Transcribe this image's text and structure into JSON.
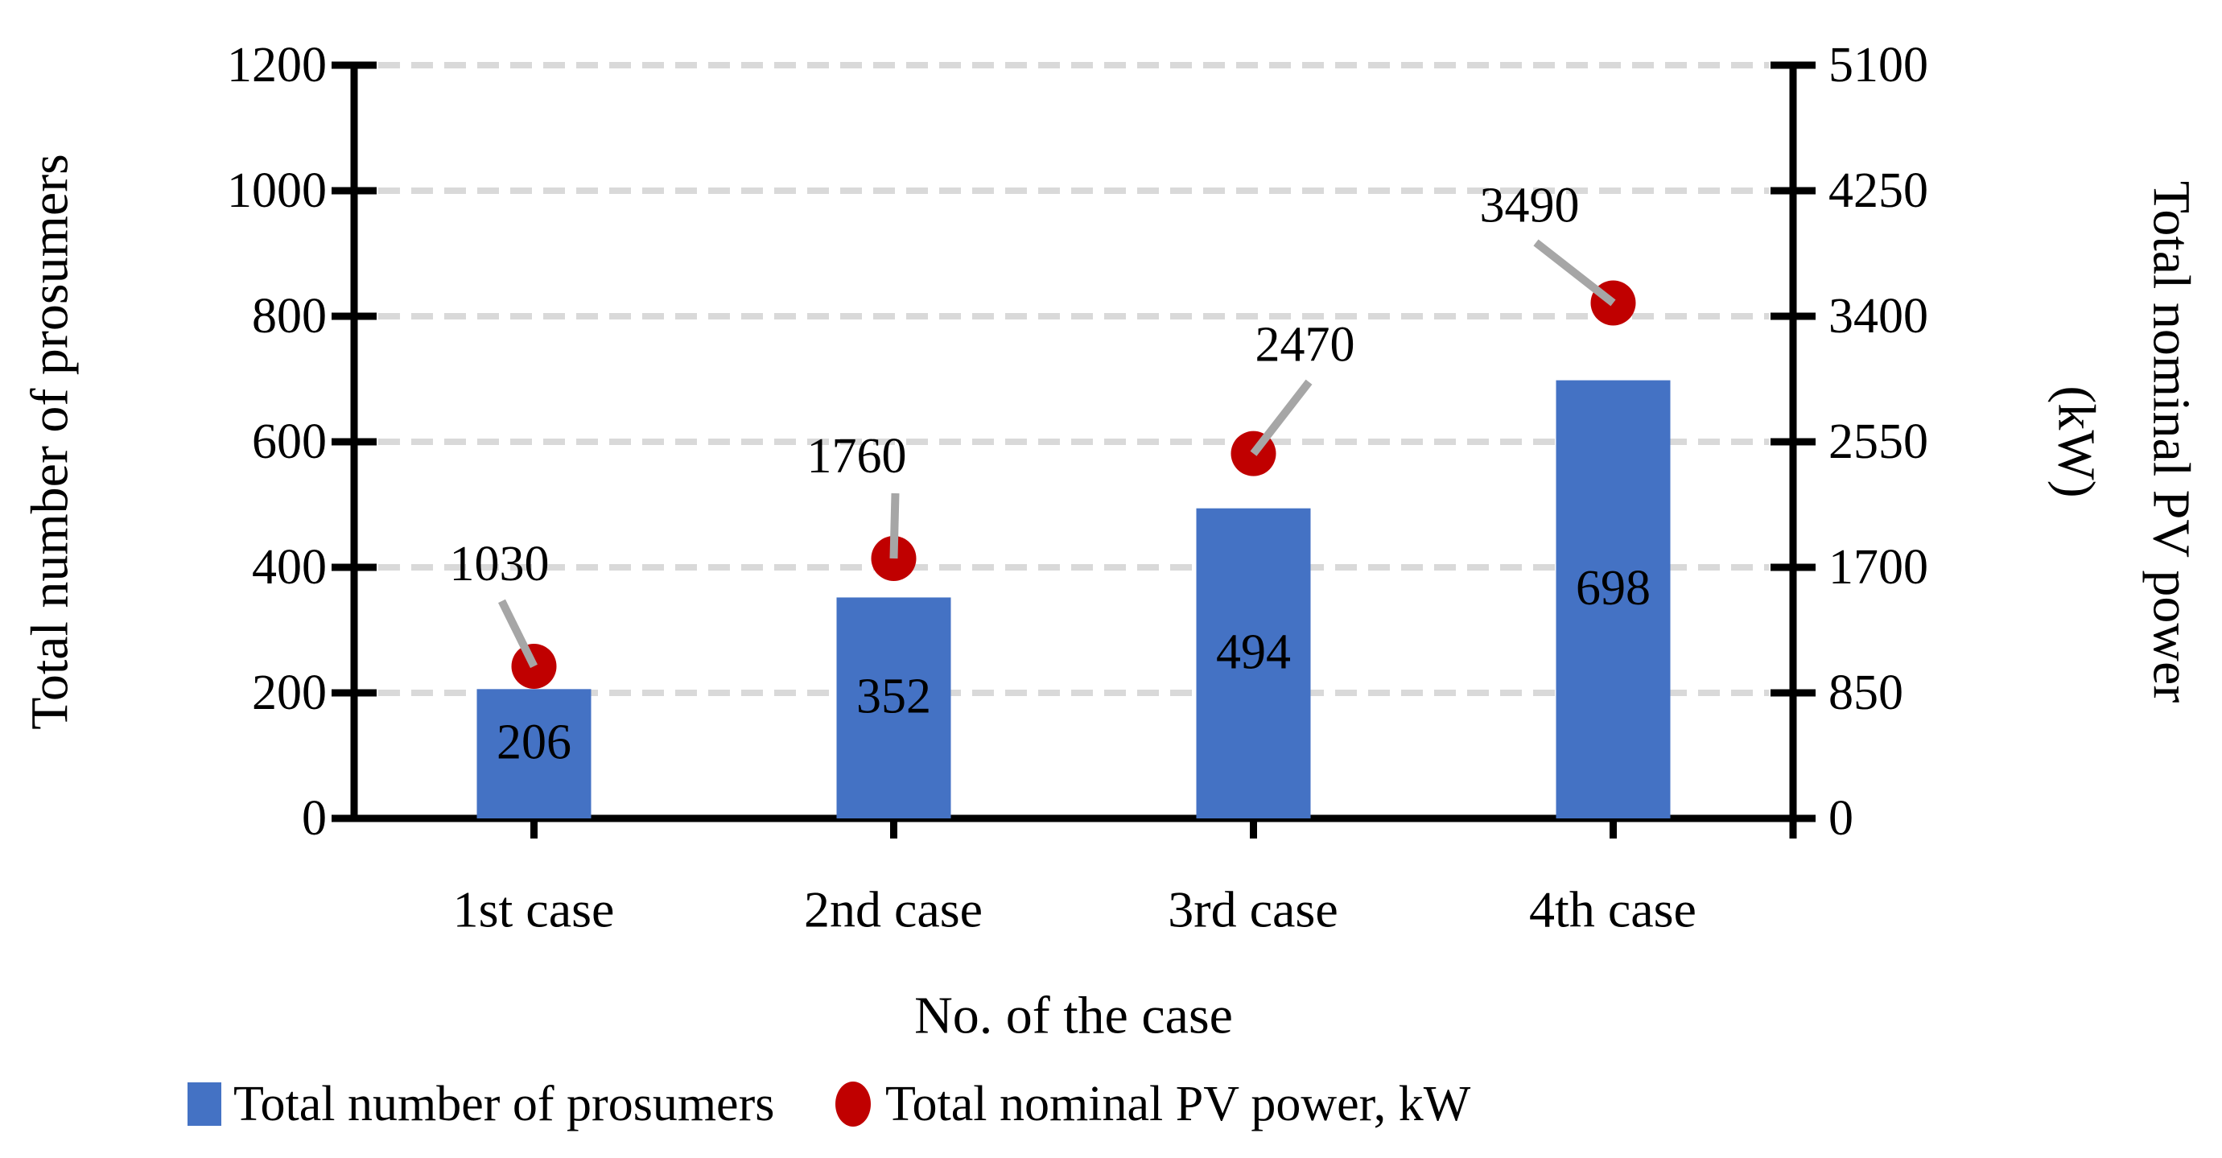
{
  "figure": {
    "background": "#FFFFFF"
  },
  "chart_data": {
    "type": "combo",
    "categories": [
      "1st case",
      "2nd case",
      "3rd case",
      "4th case"
    ],
    "series": [
      {
        "name": "Total number of prosumers",
        "type": "bar",
        "axis": "left",
        "color": "#4472C4",
        "values": [
          206,
          352,
          494,
          698
        ],
        "labels": [
          "206",
          "352",
          "494",
          "698"
        ]
      },
      {
        "name": "Total nominal PV power, kW",
        "type": "scatter",
        "axis": "right",
        "color": "#C00000",
        "values": [
          1030,
          1760,
          2470,
          3490
        ],
        "labels": [
          "1030",
          "1760",
          "2470",
          "3490"
        ]
      }
    ],
    "xlabel": "No. of the case",
    "left_axis": {
      "title": "Total number of prosumers",
      "min": 0,
      "max": 1200,
      "step": 200,
      "tick_labels": [
        "1200",
        "1000",
        "800",
        "600",
        "400",
        "200",
        "0"
      ]
    },
    "right_axis": {
      "title": "Total nominal PV power",
      "title_line2": "(kW)",
      "min": 0,
      "max": 5100,
      "step": 850,
      "tick_labels": [
        "5100",
        "4250",
        "3400",
        "2550",
        "1700",
        "850",
        "0"
      ]
    },
    "gridlines": {
      "style": "dashed",
      "color": "#D9D9D9"
    },
    "leader_line_color": "#A6A6A6",
    "axis_color": "#000000",
    "legend": {
      "position": "bottom",
      "items": [
        {
          "label": "Total number of prosumers",
          "marker": "square",
          "color": "#4472C4"
        },
        {
          "label": "Total nominal PV power, kW",
          "marker": "circle",
          "color": "#C00000"
        }
      ]
    }
  }
}
